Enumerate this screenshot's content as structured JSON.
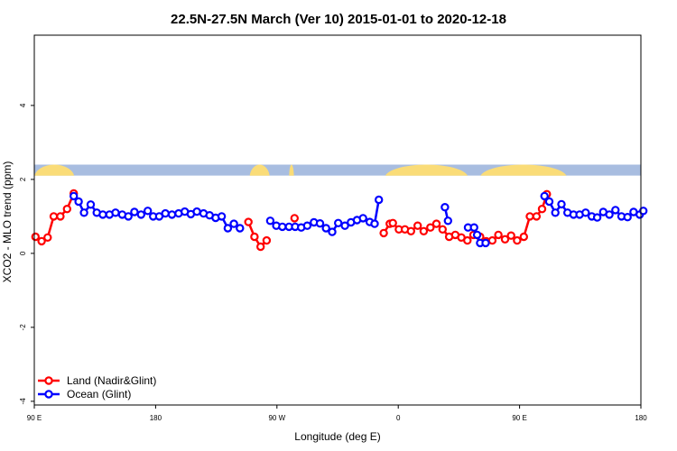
{
  "chart_data": {
    "type": "line",
    "title": "22.5N-27.5N March (Ver 10)   2015-01-01 to 2020-12-18",
    "xlabel": "Longitude (deg E)",
    "ylabel": "XCO2 - MLO trend (ppm)",
    "xlim": [
      0,
      100
    ],
    "ylim": [
      -4.1,
      5.9
    ],
    "x_ticks": [
      {
        "value": 0,
        "label": "90 E"
      },
      {
        "value": 20,
        "label": "180"
      },
      {
        "value": 40,
        "label": "90 W"
      },
      {
        "value": 60,
        "label": "0"
      },
      {
        "value": 80,
        "label": "90 E"
      },
      {
        "value": 100,
        "label": "180"
      }
    ],
    "y_ticks": [
      {
        "value": -4,
        "label": "-4"
      },
      {
        "value": -2,
        "label": "-2"
      },
      {
        "value": 0,
        "label": "0"
      },
      {
        "value": 2,
        "label": "2"
      },
      {
        "value": 4,
        "label": "4"
      }
    ],
    "grid": false,
    "legend_position": "bottom-left",
    "colors": {
      "land": "#ff0000",
      "ocean": "#0000ff",
      "map_land": "#fadc78",
      "map_ocean": "#a8bde0"
    },
    "land_mask": {
      "y_range": [
        2.1,
        2.4
      ],
      "segments": [
        [
          0,
          6.6
        ],
        [
          35.5,
          38.8
        ],
        [
          42,
          42.8
        ],
        [
          57.8,
          71.5
        ],
        [
          73.5,
          87.8
        ]
      ]
    },
    "series": [
      {
        "name": "Land (Nadir&Glint)",
        "key": "land",
        "segments": [
          [
            [
              0.2,
              0.45
            ],
            [
              1.2,
              0.33
            ],
            [
              2.2,
              0.43
            ],
            [
              3.2,
              1.0
            ],
            [
              4.3,
              1.0
            ],
            [
              5.4,
              1.2
            ],
            [
              6.5,
              1.62
            ]
          ],
          [
            [
              35.3,
              0.85
            ],
            [
              36.3,
              0.45
            ],
            [
              37.3,
              0.18
            ],
            [
              38.3,
              0.35
            ]
          ],
          [
            [
              42.9,
              0.95
            ]
          ],
          [
            [
              57.6,
              0.55
            ],
            [
              58.6,
              0.8
            ],
            [
              59.1,
              0.82
            ],
            [
              60.1,
              0.65
            ],
            [
              61.1,
              0.65
            ],
            [
              62.1,
              0.6
            ],
            [
              63.2,
              0.75
            ],
            [
              64.2,
              0.6
            ],
            [
              65.3,
              0.7
            ],
            [
              66.3,
              0.8
            ],
            [
              67.3,
              0.65
            ],
            [
              68.4,
              0.45
            ],
            [
              69.4,
              0.5
            ],
            [
              70.4,
              0.43
            ],
            [
              71.4,
              0.35
            ],
            [
              72.4,
              0.5
            ],
            [
              73.5,
              0.45
            ],
            [
              74.5,
              0.33
            ],
            [
              75.5,
              0.35
            ],
            [
              76.5,
              0.5
            ],
            [
              77.6,
              0.38
            ],
            [
              78.6,
              0.48
            ],
            [
              79.6,
              0.35
            ],
            [
              80.7,
              0.45
            ],
            [
              81.7,
              1.0
            ],
            [
              82.8,
              1.0
            ],
            [
              83.7,
              1.2
            ],
            [
              84.5,
              1.6
            ]
          ]
        ]
      },
      {
        "name": "Ocean (Glint)",
        "key": "ocean",
        "segments": [
          [
            [
              6.5,
              1.55
            ],
            [
              7.3,
              1.4
            ],
            [
              8.2,
              1.1
            ],
            [
              9.3,
              1.32
            ],
            [
              10.3,
              1.1
            ],
            [
              11.3,
              1.05
            ],
            [
              12.4,
              1.05
            ],
            [
              13.4,
              1.1
            ],
            [
              14.5,
              1.05
            ],
            [
              15.5,
              1.0
            ],
            [
              16.5,
              1.12
            ],
            [
              17.6,
              1.05
            ],
            [
              18.7,
              1.15
            ],
            [
              19.6,
              1.0
            ],
            [
              20.6,
              1.0
            ],
            [
              21.6,
              1.08
            ],
            [
              22.7,
              1.05
            ],
            [
              23.8,
              1.08
            ],
            [
              24.8,
              1.13
            ],
            [
              25.8,
              1.06
            ],
            [
              26.8,
              1.13
            ],
            [
              27.9,
              1.08
            ],
            [
              28.9,
              1.03
            ],
            [
              29.9,
              0.96
            ],
            [
              30.9,
              1.0
            ],
            [
              31.9,
              0.68
            ],
            [
              32.9,
              0.8
            ],
            [
              33.9,
              0.68
            ]
          ],
          [
            [
              38.9,
              0.88
            ],
            [
              39.9,
              0.75
            ],
            [
              40.9,
              0.72
            ],
            [
              42,
              0.72
            ],
            [
              43,
              0.72
            ],
            [
              44,
              0.7
            ],
            [
              45,
              0.75
            ],
            [
              46.1,
              0.84
            ],
            [
              47.1,
              0.81
            ],
            [
              48.1,
              0.68
            ],
            [
              49.1,
              0.58
            ],
            [
              50.1,
              0.82
            ],
            [
              51.2,
              0.75
            ],
            [
              52.2,
              0.84
            ],
            [
              53.2,
              0.9
            ],
            [
              54.2,
              0.95
            ],
            [
              55.3,
              0.85
            ],
            [
              56.1,
              0.8
            ],
            [
              56.8,
              1.45
            ]
          ],
          [
            [
              67.7,
              1.25
            ],
            [
              68.2,
              0.88
            ]
          ],
          [
            [
              71.5,
              0.7
            ],
            [
              72.5,
              0.7
            ],
            [
              73,
              0.5
            ],
            [
              73.5,
              0.28
            ],
            [
              74.4,
              0.28
            ]
          ],
          [
            [
              84.1,
              1.55
            ],
            [
              84.9,
              1.4
            ],
            [
              85.9,
              1.1
            ],
            [
              86.9,
              1.33
            ],
            [
              87.9,
              1.1
            ],
            [
              88.9,
              1.05
            ],
            [
              89.9,
              1.05
            ],
            [
              90.9,
              1.1
            ],
            [
              91.9,
              1.0
            ],
            [
              92.8,
              0.97
            ],
            [
              93.8,
              1.12
            ],
            [
              94.8,
              1.05
            ],
            [
              95.8,
              1.17
            ],
            [
              96.8,
              1.0
            ],
            [
              97.8,
              0.98
            ],
            [
              98.8,
              1.12
            ],
            [
              99.8,
              1.05
            ],
            [
              100.4,
              1.15
            ]
          ]
        ]
      }
    ]
  }
}
